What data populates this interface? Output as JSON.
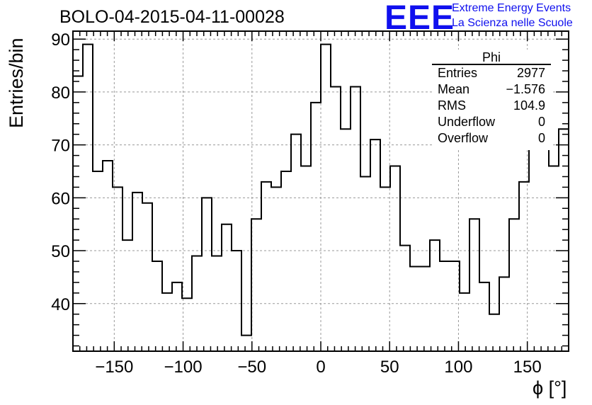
{
  "title": "BOLO-04-2015-04-11-00028",
  "logo": {
    "mark": "EEE",
    "line1": "Extreme Energy Events",
    "line2": "La Scienza nelle Scuole"
  },
  "stats_box": {
    "title": "Phi",
    "rows": [
      {
        "label": "Entries",
        "value": "2977"
      },
      {
        "label": "Mean",
        "value": "−1.576"
      },
      {
        "label": "RMS",
        "value": "104.9"
      },
      {
        "label": "Underflow",
        "value": "0"
      },
      {
        "label": "Overflow",
        "value": "0"
      }
    ]
  },
  "chart_data": {
    "type": "histogram",
    "xlabel": "ϕ [°]",
    "ylabel": "Entries/bin",
    "xlim": [
      -180,
      180
    ],
    "ylim": [
      31,
      91.5
    ],
    "bin_width": 7.2,
    "grid": true,
    "xticks": [
      -150,
      -100,
      -50,
      0,
      50,
      100,
      150
    ],
    "xtick_labels": [
      "−150",
      "−100",
      "−50",
      "0",
      "50",
      "100",
      "150"
    ],
    "yticks": [
      40,
      50,
      60,
      70,
      80,
      90
    ],
    "ytick_labels": [
      "40",
      "50",
      "60",
      "70",
      "80",
      "90"
    ],
    "values": [
      83,
      89,
      65,
      67,
      62,
      52,
      61,
      59,
      48,
      42,
      44,
      41,
      49,
      60,
      49,
      55,
      50,
      34,
      56,
      63,
      62,
      65,
      72,
      66,
      78,
      89,
      81,
      73,
      81,
      64,
      71,
      62,
      66,
      51,
      47,
      47,
      52,
      48,
      48,
      42,
      56,
      44,
      38,
      45,
      56,
      63,
      70,
      71,
      66,
      73
    ],
    "line_color": "#000000",
    "grid_color": "#999999"
  }
}
